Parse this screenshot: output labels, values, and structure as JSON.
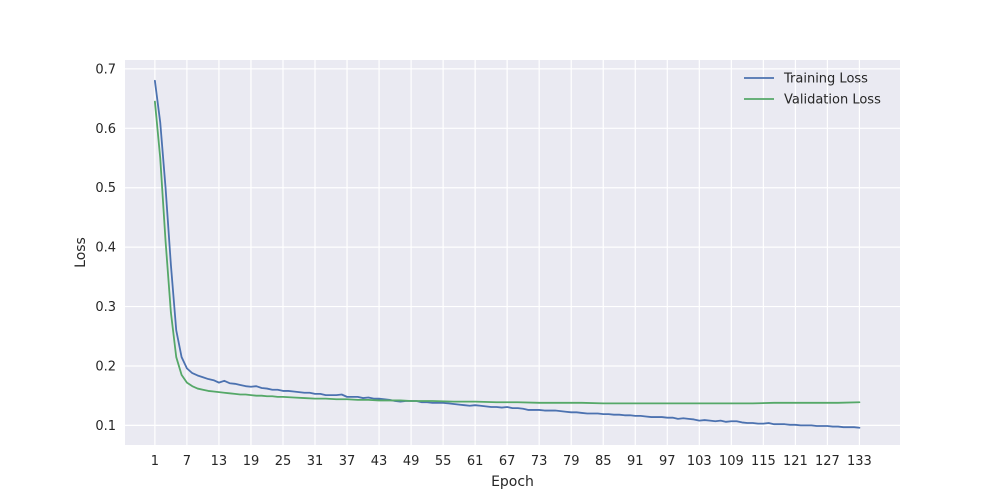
{
  "chart_data": {
    "type": "line",
    "title": "",
    "xlabel": "Epoch",
    "ylabel": "Loss",
    "xlim": [
      -4.6,
      140.6
    ],
    "ylim": [
      0.067,
      0.715
    ],
    "x_ticks": [
      1,
      7,
      13,
      19,
      25,
      31,
      37,
      43,
      49,
      55,
      61,
      67,
      73,
      79,
      85,
      91,
      97,
      103,
      109,
      115,
      121,
      127,
      133
    ],
    "y_ticks": [
      0.1,
      0.2,
      0.3,
      0.4,
      0.5,
      0.6,
      0.7
    ],
    "grid": true,
    "legend_position": "top-right",
    "series": [
      {
        "name": "Training Loss",
        "color": "#4c72b0",
        "points": [
          [
            1,
            0.68
          ],
          [
            2,
            0.61
          ],
          [
            3,
            0.5
          ],
          [
            4,
            0.37
          ],
          [
            5,
            0.26
          ],
          [
            6,
            0.215
          ],
          [
            7,
            0.196
          ],
          [
            8,
            0.188
          ],
          [
            9,
            0.184
          ],
          [
            10,
            0.181
          ],
          [
            11,
            0.178
          ],
          [
            12,
            0.176
          ],
          [
            13,
            0.172
          ],
          [
            14,
            0.175
          ],
          [
            15,
            0.171
          ],
          [
            16,
            0.17
          ],
          [
            17,
            0.168
          ],
          [
            18,
            0.166
          ],
          [
            19,
            0.165
          ],
          [
            20,
            0.166
          ],
          [
            21,
            0.163
          ],
          [
            22,
            0.162
          ],
          [
            23,
            0.16
          ],
          [
            24,
            0.16
          ],
          [
            25,
            0.158
          ],
          [
            26,
            0.158
          ],
          [
            27,
            0.157
          ],
          [
            28,
            0.156
          ],
          [
            29,
            0.155
          ],
          [
            30,
            0.155
          ],
          [
            31,
            0.153
          ],
          [
            32,
            0.153
          ],
          [
            33,
            0.151
          ],
          [
            34,
            0.151
          ],
          [
            35,
            0.151
          ],
          [
            36,
            0.152
          ],
          [
            37,
            0.148
          ],
          [
            38,
            0.148
          ],
          [
            39,
            0.148
          ],
          [
            40,
            0.146
          ],
          [
            41,
            0.147
          ],
          [
            42,
            0.145
          ],
          [
            43,
            0.145
          ],
          [
            44,
            0.144
          ],
          [
            45,
            0.143
          ],
          [
            46,
            0.141
          ],
          [
            47,
            0.14
          ],
          [
            48,
            0.141
          ],
          [
            49,
            0.141
          ],
          [
            50,
            0.141
          ],
          [
            51,
            0.139
          ],
          [
            52,
            0.139
          ],
          [
            53,
            0.138
          ],
          [
            54,
            0.138
          ],
          [
            55,
            0.138
          ],
          [
            56,
            0.137
          ],
          [
            57,
            0.136
          ],
          [
            58,
            0.135
          ],
          [
            59,
            0.134
          ],
          [
            60,
            0.133
          ],
          [
            61,
            0.134
          ],
          [
            62,
            0.133
          ],
          [
            63,
            0.132
          ],
          [
            64,
            0.131
          ],
          [
            65,
            0.131
          ],
          [
            66,
            0.13
          ],
          [
            67,
            0.131
          ],
          [
            68,
            0.129
          ],
          [
            69,
            0.129
          ],
          [
            70,
            0.128
          ],
          [
            71,
            0.126
          ],
          [
            72,
            0.126
          ],
          [
            73,
            0.126
          ],
          [
            74,
            0.125
          ],
          [
            75,
            0.125
          ],
          [
            76,
            0.125
          ],
          [
            77,
            0.124
          ],
          [
            78,
            0.123
          ],
          [
            79,
            0.122
          ],
          [
            80,
            0.122
          ],
          [
            81,
            0.121
          ],
          [
            82,
            0.12
          ],
          [
            83,
            0.12
          ],
          [
            84,
            0.12
          ],
          [
            85,
            0.119
          ],
          [
            86,
            0.119
          ],
          [
            87,
            0.118
          ],
          [
            88,
            0.118
          ],
          [
            89,
            0.117
          ],
          [
            90,
            0.117
          ],
          [
            91,
            0.116
          ],
          [
            92,
            0.116
          ],
          [
            93,
            0.115
          ],
          [
            94,
            0.114
          ],
          [
            95,
            0.114
          ],
          [
            96,
            0.114
          ],
          [
            97,
            0.113
          ],
          [
            98,
            0.113
          ],
          [
            99,
            0.111
          ],
          [
            100,
            0.112
          ],
          [
            101,
            0.111
          ],
          [
            102,
            0.11
          ],
          [
            103,
            0.108
          ],
          [
            104,
            0.109
          ],
          [
            105,
            0.108
          ],
          [
            106,
            0.107
          ],
          [
            107,
            0.108
          ],
          [
            108,
            0.106
          ],
          [
            109,
            0.107
          ],
          [
            110,
            0.107
          ],
          [
            111,
            0.105
          ],
          [
            112,
            0.104
          ],
          [
            113,
            0.104
          ],
          [
            114,
            0.103
          ],
          [
            115,
            0.103
          ],
          [
            116,
            0.104
          ],
          [
            117,
            0.102
          ],
          [
            118,
            0.102
          ],
          [
            119,
            0.102
          ],
          [
            120,
            0.101
          ],
          [
            121,
            0.101
          ],
          [
            122,
            0.1
          ],
          [
            123,
            0.1
          ],
          [
            124,
            0.1
          ],
          [
            125,
            0.099
          ],
          [
            126,
            0.099
          ],
          [
            127,
            0.099
          ],
          [
            128,
            0.098
          ],
          [
            129,
            0.098
          ],
          [
            130,
            0.097
          ],
          [
            131,
            0.097
          ],
          [
            132,
            0.097
          ],
          [
            133,
            0.096
          ]
        ]
      },
      {
        "name": "Validation Loss",
        "color": "#55a868",
        "points": [
          [
            1,
            0.645
          ],
          [
            2,
            0.55
          ],
          [
            3,
            0.41
          ],
          [
            4,
            0.29
          ],
          [
            5,
            0.215
          ],
          [
            6,
            0.185
          ],
          [
            7,
            0.172
          ],
          [
            8,
            0.166
          ],
          [
            9,
            0.162
          ],
          [
            10,
            0.16
          ],
          [
            11,
            0.158
          ],
          [
            12,
            0.157
          ],
          [
            13,
            0.156
          ],
          [
            14,
            0.155
          ],
          [
            15,
            0.154
          ],
          [
            16,
            0.153
          ],
          [
            17,
            0.152
          ],
          [
            18,
            0.152
          ],
          [
            19,
            0.151
          ],
          [
            20,
            0.15
          ],
          [
            21,
            0.15
          ],
          [
            22,
            0.149
          ],
          [
            23,
            0.149
          ],
          [
            24,
            0.148
          ],
          [
            25,
            0.148
          ],
          [
            27,
            0.147
          ],
          [
            29,
            0.146
          ],
          [
            31,
            0.145
          ],
          [
            33,
            0.145
          ],
          [
            35,
            0.144
          ],
          [
            37,
            0.144
          ],
          [
            39,
            0.143
          ],
          [
            41,
            0.143
          ],
          [
            43,
            0.142
          ],
          [
            45,
            0.142
          ],
          [
            47,
            0.142
          ],
          [
            49,
            0.141
          ],
          [
            53,
            0.141
          ],
          [
            57,
            0.14
          ],
          [
            61,
            0.14
          ],
          [
            65,
            0.139
          ],
          [
            69,
            0.139
          ],
          [
            73,
            0.138
          ],
          [
            77,
            0.138
          ],
          [
            81,
            0.138
          ],
          [
            85,
            0.137
          ],
          [
            89,
            0.137
          ],
          [
            93,
            0.137
          ],
          [
            97,
            0.137
          ],
          [
            101,
            0.137
          ],
          [
            105,
            0.137
          ],
          [
            109,
            0.137
          ],
          [
            113,
            0.137
          ],
          [
            117,
            0.138
          ],
          [
            121,
            0.138
          ],
          [
            125,
            0.138
          ],
          [
            129,
            0.138
          ],
          [
            133,
            0.139
          ]
        ]
      }
    ]
  }
}
